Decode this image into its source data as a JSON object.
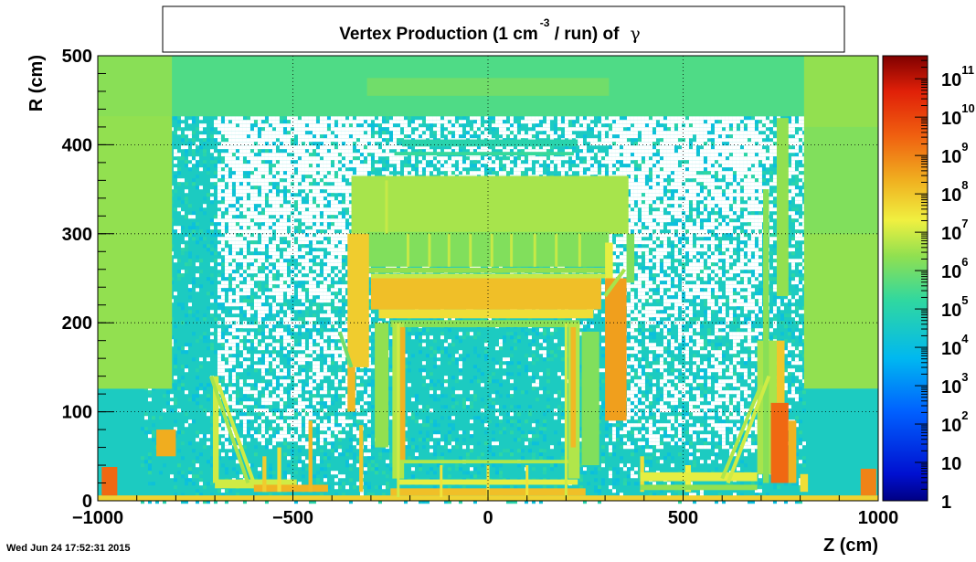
{
  "chart_data": {
    "type": "heatmap",
    "title_parts": {
      "prefix": "Vertex Production (1 cm",
      "exponent": "-3",
      "suffix": " / run) of",
      "particle": "γ"
    },
    "xlabel": "Z (cm)",
    "ylabel": "R (cm)",
    "xlim": [
      -1000,
      1000
    ],
    "ylim": [
      0,
      500
    ],
    "x_ticks": [
      {
        "value": -1000,
        "label": "−1000"
      },
      {
        "value": -500,
        "label": "−500"
      },
      {
        "value": 0,
        "label": "0"
      },
      {
        "value": 500,
        "label": "500"
      },
      {
        "value": 1000,
        "label": "1000"
      }
    ],
    "y_ticks": [
      {
        "value": 0,
        "label": "0"
      },
      {
        "value": 100,
        "label": "100"
      },
      {
        "value": 200,
        "label": "200"
      },
      {
        "value": 300,
        "label": "300"
      },
      {
        "value": 400,
        "label": "400"
      },
      {
        "value": 500,
        "label": "500"
      }
    ],
    "grid": true,
    "color_scale": "log",
    "zlim_log10": [
      0,
      11.6
    ],
    "z_ticks": [
      {
        "log": 0,
        "base": "1",
        "exp": ""
      },
      {
        "log": 1,
        "base": "10",
        "exp": ""
      },
      {
        "log": 2,
        "base": "10",
        "exp": "2"
      },
      {
        "log": 3,
        "base": "10",
        "exp": "3"
      },
      {
        "log": 4,
        "base": "10",
        "exp": "4"
      },
      {
        "log": 5,
        "base": "10",
        "exp": "5"
      },
      {
        "log": 6,
        "base": "10",
        "exp": "6"
      },
      {
        "log": 7,
        "base": "10",
        "exp": "7"
      },
      {
        "log": 8,
        "base": "10",
        "exp": "8"
      },
      {
        "log": 9,
        "base": "10",
        "exp": "9"
      },
      {
        "log": 10,
        "base": "10",
        "exp": "10"
      },
      {
        "log": 11,
        "base": "10",
        "exp": "11"
      }
    ],
    "background_region": {
      "z1": -1000,
      "z2": 1000,
      "r1": 0,
      "r2": 500,
      "log10": 4.6
    },
    "noise_region": {
      "z1": -890,
      "z2": 810,
      "r1": 0,
      "r2": 432,
      "zero_fraction_base": 0.15
    },
    "regions": [
      {
        "z1": -1000,
        "z2": 1000,
        "r1": 432,
        "r2": 500,
        "log10": 5.6
      },
      {
        "z1": -1000,
        "z2": -810,
        "r1": 126,
        "r2": 500,
        "log10": 6.3
      },
      {
        "z1": 810,
        "z2": 1000,
        "r1": 126,
        "r2": 500,
        "log10": 6.4
      },
      {
        "z1": -1000,
        "z2": -810,
        "r1": 126,
        "r2": 432,
        "log10": 6.4
      },
      {
        "z1": 810,
        "z2": 1000,
        "r1": 300,
        "r2": 420,
        "log10": 6.2
      },
      {
        "z1": -310,
        "z2": 310,
        "r1": 455,
        "r2": 475,
        "log10": 6.0
      },
      {
        "z1": -220,
        "z2": 230,
        "r1": 398,
        "r2": 406,
        "log10": 5.0
      },
      {
        "z1": -240,
        "z2": 220,
        "r1": 388,
        "r2": 392,
        "log10": 5.3
      },
      {
        "z1": -350,
        "z2": 360,
        "r1": 300,
        "r2": 365,
        "log10": 6.6
      },
      {
        "z1": -310,
        "z2": 310,
        "r1": 263,
        "r2": 302,
        "log10": 6.2
      },
      {
        "z1": -310,
        "z2": 310,
        "r1": 256,
        "r2": 262,
        "log10": 6.4
      },
      {
        "z1": -300,
        "z2": 290,
        "r1": 215,
        "r2": 250,
        "log10": 8.1
      },
      {
        "z1": -280,
        "z2": 270,
        "r1": 205,
        "r2": 215,
        "log10": 7.6
      },
      {
        "z1": -300,
        "z2": 300,
        "r1": 250,
        "r2": 255,
        "log10": 6.9
      },
      {
        "z1": -360,
        "z2": -305,
        "r1": 150,
        "r2": 300,
        "log10": 7.9
      },
      {
        "z1": -360,
        "z2": -340,
        "r1": 100,
        "r2": 150,
        "log10": 8.2
      },
      {
        "z1": 300,
        "z2": 355,
        "r1": 90,
        "r2": 250,
        "log10": 8.6
      },
      {
        "z1": 355,
        "z2": 375,
        "r1": 245,
        "r2": 300,
        "log10": 6.2
      },
      {
        "z1": 300,
        "z2": 320,
        "r1": 250,
        "r2": 290,
        "log10": 7.2
      },
      {
        "z1": -250,
        "z2": 235,
        "r1": 195,
        "r2": 203,
        "log10": 6.3
      },
      {
        "z1": -245,
        "z2": -215,
        "r1": 25,
        "r2": 200,
        "log10": 6.7
      },
      {
        "z1": 205,
        "z2": 235,
        "r1": 25,
        "r2": 200,
        "log10": 6.7
      },
      {
        "z1": -225,
        "z2": -212,
        "r1": 45,
        "r2": 195,
        "log10": 8.3
      },
      {
        "z1": 212,
        "z2": 225,
        "r1": 60,
        "r2": 195,
        "log10": 8.2
      },
      {
        "z1": -290,
        "z2": -255,
        "r1": 60,
        "r2": 200,
        "log10": 6.4
      },
      {
        "z1": 240,
        "z2": 285,
        "r1": 40,
        "r2": 190,
        "log10": 6.2
      },
      {
        "z1": -230,
        "z2": 230,
        "r1": 42,
        "r2": 46,
        "log10": 6.7
      },
      {
        "z1": -230,
        "z2": 230,
        "r1": 18,
        "r2": 24,
        "log10": 7.2
      },
      {
        "z1": -250,
        "z2": 250,
        "r1": 6,
        "r2": 14,
        "log10": 8.1
      },
      {
        "z1": -1000,
        "z2": 1000,
        "r1": 0,
        "r2": 6,
        "log10": 7.8
      },
      {
        "z1": -990,
        "z2": -950,
        "r1": 6,
        "r2": 38,
        "log10": 9.4
      },
      {
        "z1": 955,
        "z2": 995,
        "r1": 6,
        "r2": 36,
        "log10": 9.0
      },
      {
        "z1": -850,
        "z2": -800,
        "r1": 50,
        "r2": 80,
        "log10": 8.4
      },
      {
        "z1": -700,
        "z2": -490,
        "r1": 14,
        "r2": 24,
        "log10": 7.0
      },
      {
        "z1": -600,
        "z2": -410,
        "r1": 10,
        "r2": 18,
        "log10": 8.3
      },
      {
        "z1": -705,
        "z2": -690,
        "r1": 20,
        "r2": 140,
        "log10": 7.0
      },
      {
        "z1": -578,
        "z2": -568,
        "r1": 10,
        "r2": 50,
        "log10": 7.9
      },
      {
        "z1": -460,
        "z2": -450,
        "r1": 10,
        "r2": 90,
        "log10": 8.2
      },
      {
        "z1": -330,
        "z2": -320,
        "r1": 10,
        "r2": 85,
        "log10": 8.0
      },
      {
        "z1": -540,
        "z2": -530,
        "r1": 10,
        "r2": 60,
        "log10": 7.6
      },
      {
        "z1": 390,
        "z2": 400,
        "r1": 10,
        "r2": 50,
        "log10": 7.6
      },
      {
        "z1": 505,
        "z2": 520,
        "r1": 10,
        "r2": 40,
        "log10": 7.3
      },
      {
        "z1": 390,
        "z2": 690,
        "r1": 22,
        "r2": 32,
        "log10": 7.2
      },
      {
        "z1": 390,
        "z2": 690,
        "r1": 12,
        "r2": 18,
        "log10": 6.4
      },
      {
        "z1": 690,
        "z2": 740,
        "r1": 30,
        "r2": 180,
        "log10": 6.6
      },
      {
        "z1": 705,
        "z2": 720,
        "r1": 20,
        "r2": 350,
        "log10": 6.3
      },
      {
        "z1": 740,
        "z2": 770,
        "r1": 230,
        "r2": 430,
        "log10": 6.4
      },
      {
        "z1": 725,
        "z2": 770,
        "r1": 20,
        "r2": 110,
        "log10": 9.4
      },
      {
        "z1": 770,
        "z2": 790,
        "r1": 20,
        "r2": 90,
        "log10": 8.3
      },
      {
        "z1": 740,
        "z2": 760,
        "r1": 110,
        "r2": 180,
        "log10": 8.0
      },
      {
        "z1": 800,
        "z2": 820,
        "r1": 10,
        "r2": 30,
        "log10": 7.6
      }
    ],
    "stripes": [
      {
        "z": -230,
        "r1": 4,
        "r2": 200,
        "log10": 7.0
      },
      {
        "z": 200,
        "r1": 4,
        "r2": 200,
        "log10": 7.0
      },
      {
        "z": -120,
        "r1": 4,
        "r2": 40,
        "log10": 7.5
      },
      {
        "z": 0,
        "r1": 4,
        "r2": 40,
        "log10": 7.5
      },
      {
        "z": 100,
        "r1": 4,
        "r2": 40,
        "log10": 7.5
      },
      {
        "z": -260,
        "r1": 300,
        "r2": 360,
        "log10": 6.9
      },
      {
        "z": -205,
        "r1": 263,
        "r2": 300,
        "log10": 6.9
      },
      {
        "z": -150,
        "r1": 263,
        "r2": 300,
        "log10": 6.9
      },
      {
        "z": -100,
        "r1": 263,
        "r2": 300,
        "log10": 6.9
      },
      {
        "z": -45,
        "r1": 263,
        "r2": 300,
        "log10": 6.9
      },
      {
        "z": 10,
        "r1": 263,
        "r2": 300,
        "log10": 6.9
      },
      {
        "z": 60,
        "r1": 263,
        "r2": 300,
        "log10": 6.9
      },
      {
        "z": 120,
        "r1": 263,
        "r2": 300,
        "log10": 6.9
      },
      {
        "z": 175,
        "r1": 263,
        "r2": 300,
        "log10": 6.9
      },
      {
        "z": 235,
        "r1": 263,
        "r2": 300,
        "log10": 6.9
      }
    ],
    "diagonal_bands": [
      {
        "za": -690,
        "ra": 130,
        "zb": -600,
        "rb": 20,
        "log10": 7.0
      },
      {
        "za": -710,
        "ra": 140,
        "zb": -615,
        "rb": 20,
        "log10": 6.6
      },
      {
        "za": 720,
        "ra": 140,
        "zb": 615,
        "rb": 20,
        "log10": 7.0
      },
      {
        "za": 700,
        "ra": 130,
        "zb": 600,
        "rb": 25,
        "log10": 6.7
      },
      {
        "za": -380,
        "ra": 190,
        "zb": -350,
        "rb": 150,
        "log10": 6.0
      },
      {
        "za": 350,
        "ra": 260,
        "zb": 300,
        "rb": 230,
        "log10": 6.6
      }
    ]
  },
  "footer": {
    "timestamp": "Wed Jun 24 17:52:31 2015"
  }
}
